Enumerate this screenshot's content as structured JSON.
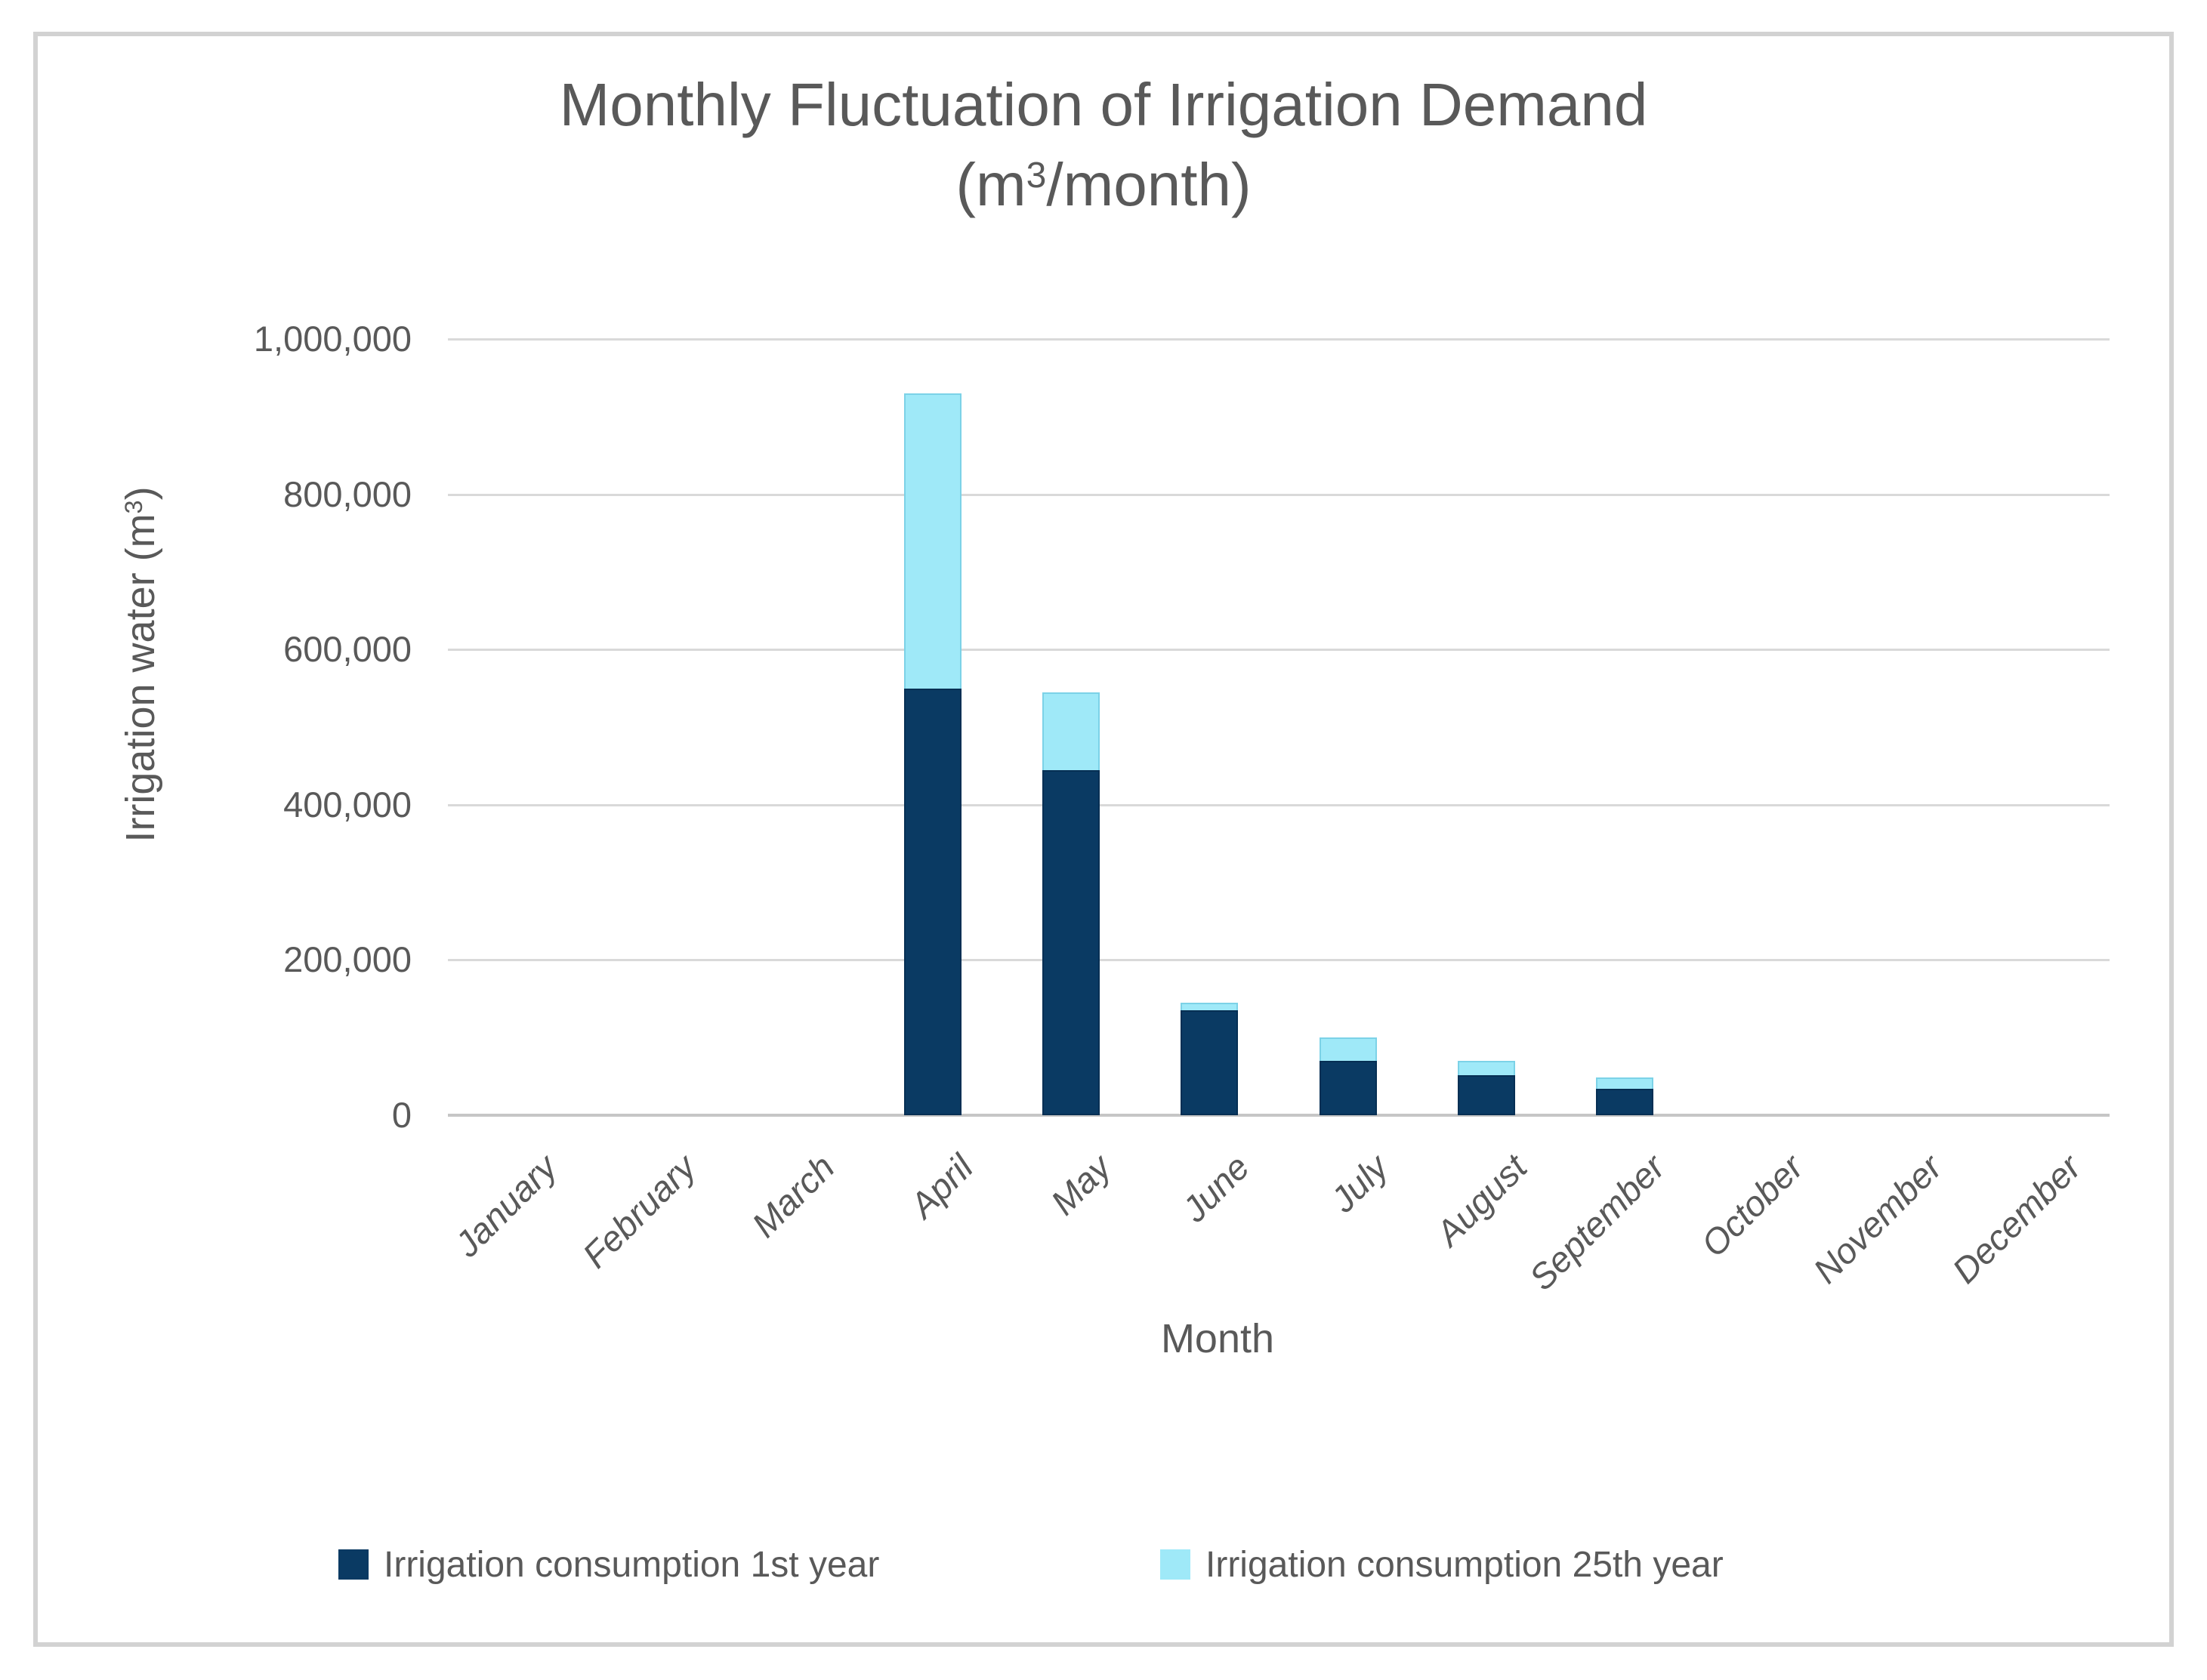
{
  "chart_data": {
    "type": "bar",
    "bar_mode": "overlap-front-series-smaller",
    "title_line1": "Monthly Fluctuation of Irrigation Demand",
    "title_line2_prefix": "(m",
    "title_line2_sup": "3",
    "title_line2_suffix": "/month)",
    "xlabel": "Month",
    "ylabel_prefix": "Irrigation water (m",
    "ylabel_sup": "3",
    "ylabel_suffix": ")",
    "categories": [
      "January",
      "February",
      "March",
      "April",
      "May",
      "June",
      "July",
      "August",
      "September",
      "October",
      "November",
      "December"
    ],
    "series": [
      {
        "name": "Irrigation consumption 1st year",
        "color": "#0a3a63",
        "values": [
          0,
          0,
          0,
          550000,
          445000,
          135000,
          70000,
          52000,
          34000,
          0,
          0,
          0
        ]
      },
      {
        "name": "Irrigation consumption 25th year",
        "color": "#9fe9f8",
        "values": [
          0,
          0,
          0,
          930000,
          545000,
          145000,
          100000,
          70000,
          49000,
          0,
          0,
          0
        ]
      }
    ],
    "ylim": [
      0,
      1000000
    ],
    "yticks": [
      {
        "value": 0,
        "label": "0"
      },
      {
        "value": 200000,
        "label": "200,000"
      },
      {
        "value": 400000,
        "label": "400,000"
      },
      {
        "value": 600000,
        "label": "600,000"
      },
      {
        "value": 800000,
        "label": "800,000"
      },
      {
        "value": 1000000,
        "label": "1,000,000"
      }
    ],
    "grid": "horizontal",
    "legend_position": "bottom"
  },
  "colors": {
    "gridline": "#d9d9d9",
    "axis_line": "#c6c6c6",
    "text": "#595959",
    "frame_border": "#d2d2d2",
    "background": "#ffffff"
  }
}
